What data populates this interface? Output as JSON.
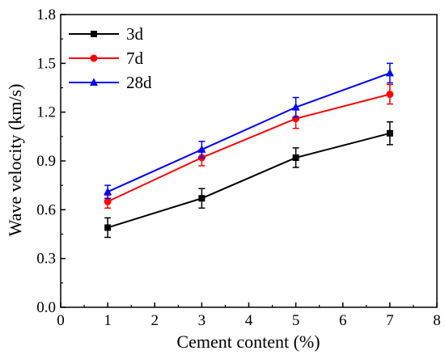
{
  "chart_data": {
    "type": "line",
    "xlabel": "Cement content (%)",
    "ylabel": "Wave velocity (km/s)",
    "xlim": [
      0,
      8
    ],
    "ylim": [
      0.0,
      1.8
    ],
    "x_ticks": [
      "0",
      "1",
      "2",
      "3",
      "4",
      "5",
      "6",
      "7",
      "8"
    ],
    "y_ticks": [
      "0.0",
      "0.3",
      "0.6",
      "0.9",
      "1.2",
      "1.5",
      "1.8"
    ],
    "grid": false,
    "legend_position": "top-left",
    "series": [
      {
        "name": "3d",
        "color": "#000000",
        "marker": "square",
        "x": [
          1,
          3,
          5,
          7
        ],
        "y": [
          0.49,
          0.67,
          0.92,
          1.07
        ],
        "err": [
          0.06,
          0.06,
          0.06,
          0.07
        ]
      },
      {
        "name": "7d",
        "color": "#ff0000",
        "marker": "circle",
        "x": [
          1,
          3,
          5,
          7
        ],
        "y": [
          0.65,
          0.92,
          1.16,
          1.31
        ],
        "err": [
          0.04,
          0.05,
          0.06,
          0.06
        ]
      },
      {
        "name": "28d",
        "color": "#0000ff",
        "marker": "triangle",
        "x": [
          1,
          3,
          5,
          7
        ],
        "y": [
          0.71,
          0.97,
          1.23,
          1.44
        ],
        "err": [
          0.04,
          0.05,
          0.06,
          0.06
        ]
      }
    ]
  }
}
